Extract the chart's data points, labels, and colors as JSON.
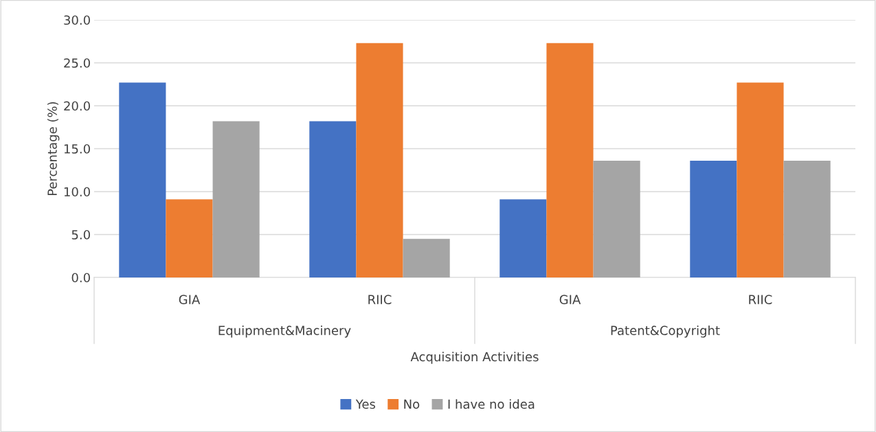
{
  "chart_data": {
    "type": "bar",
    "xlabel": "Acquisition Activities",
    "ylabel": "Percentage (%)",
    "categories": [
      "GIA",
      "RIIC",
      "GIA",
      "RIIC"
    ],
    "annotations": [
      "Equipment&Macinery",
      "Patent&Copyright"
    ],
    "series": [
      {
        "name": "Yes",
        "color": "#4472c4",
        "values": [
          22.7,
          18.2,
          9.1,
          13.6
        ]
      },
      {
        "name": "No",
        "color": "#ed7d31",
        "values": [
          9.1,
          27.3,
          27.3,
          22.7
        ]
      },
      {
        "name": "I have no idea",
        "color": "#a5a5a5",
        "values": [
          18.2,
          4.5,
          13.6,
          13.6
        ]
      }
    ],
    "ylim": [
      0,
      30
    ],
    "yticks": [
      {
        "value": 0,
        "label": "0.0"
      },
      {
        "value": 5,
        "label": "5.0"
      },
      {
        "value": 10,
        "label": "10.0"
      },
      {
        "value": 15,
        "label": "15.0"
      },
      {
        "value": 20,
        "label": "20.0"
      },
      {
        "value": 25,
        "label": "25.0"
      },
      {
        "value": 30,
        "label": "30.0"
      }
    ],
    "grid": "y",
    "legend": "bottom"
  }
}
